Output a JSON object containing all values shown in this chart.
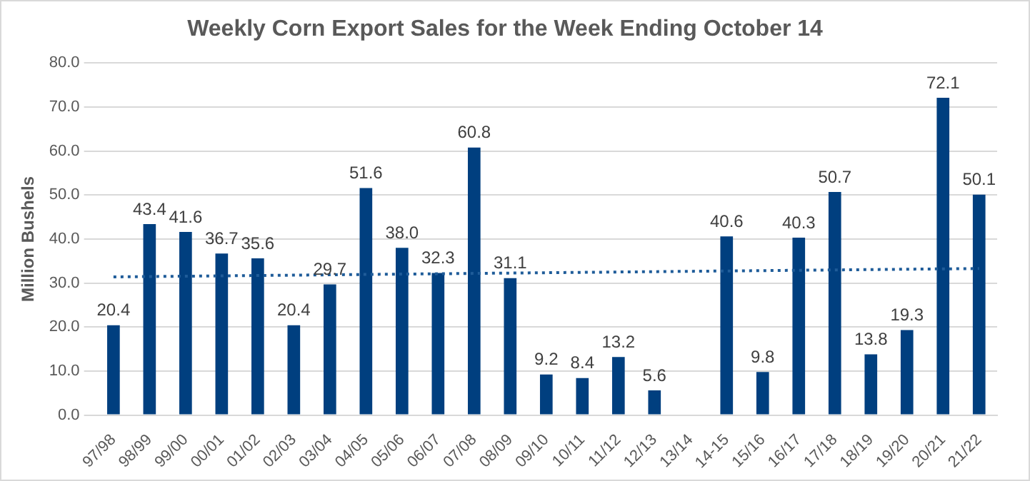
{
  "chart_data": {
    "type": "bar",
    "title": "Weekly Corn Export Sales for the Week Ending October 14",
    "ylabel": "Million Bushels",
    "categories": [
      "97/98",
      "98/99",
      "99/00",
      "00/01",
      "01/02",
      "02/03",
      "03/04",
      "04/05",
      "05/06",
      "06/07",
      "07/08",
      "08/09",
      "09/10",
      "10/11",
      "11/12",
      "12/13",
      "13/14",
      "14-15",
      "15/16",
      "16/17",
      "17/18",
      "18/19",
      "19/20",
      "20/21",
      "21/22"
    ],
    "series": [
      {
        "color": "#003f7f",
        "values": [
          20.4,
          43.4,
          41.6,
          36.7,
          35.6,
          20.4,
          29.7,
          51.6,
          38.0,
          32.3,
          60.8,
          31.1,
          9.2,
          8.4,
          13.2,
          5.6,
          null,
          40.6,
          9.8,
          40.3,
          50.7,
          13.8,
          19.3,
          72.1,
          50.1
        ],
        "value_labels": [
          "20.4",
          "43.4",
          "41.6",
          "36.7",
          "35.6",
          "20.4",
          "29.7",
          "51.6",
          "38.0",
          "32.3",
          "60.8",
          "31.1",
          "9.2",
          "8.4",
          "13.2",
          "5.6",
          null,
          "40.6",
          "9.8",
          "40.3",
          "50.7",
          "13.8",
          "19.3",
          "72.1",
          "50.1"
        ]
      },
      {
        "type": "line",
        "color": "#1f5c99",
        "line_style": "dotted",
        "x": [
          "97/98",
          "21/22"
        ],
        "values": [
          31.4,
          33.3
        ]
      }
    ],
    "ylim": [
      0,
      80
    ],
    "yticks": [
      {
        "value": 0,
        "label": "0.0"
      },
      {
        "value": 10,
        "label": "10.0"
      },
      {
        "value": 20,
        "label": "20.0"
      },
      {
        "value": 30,
        "label": "30.0"
      },
      {
        "value": 40,
        "label": "40.0"
      },
      {
        "value": 50,
        "label": "50.0"
      },
      {
        "value": 60,
        "label": "60.0"
      },
      {
        "value": 70,
        "label": "70.0"
      },
      {
        "value": 80,
        "label": "80.0"
      }
    ],
    "grid": "y",
    "legend": false
  }
}
